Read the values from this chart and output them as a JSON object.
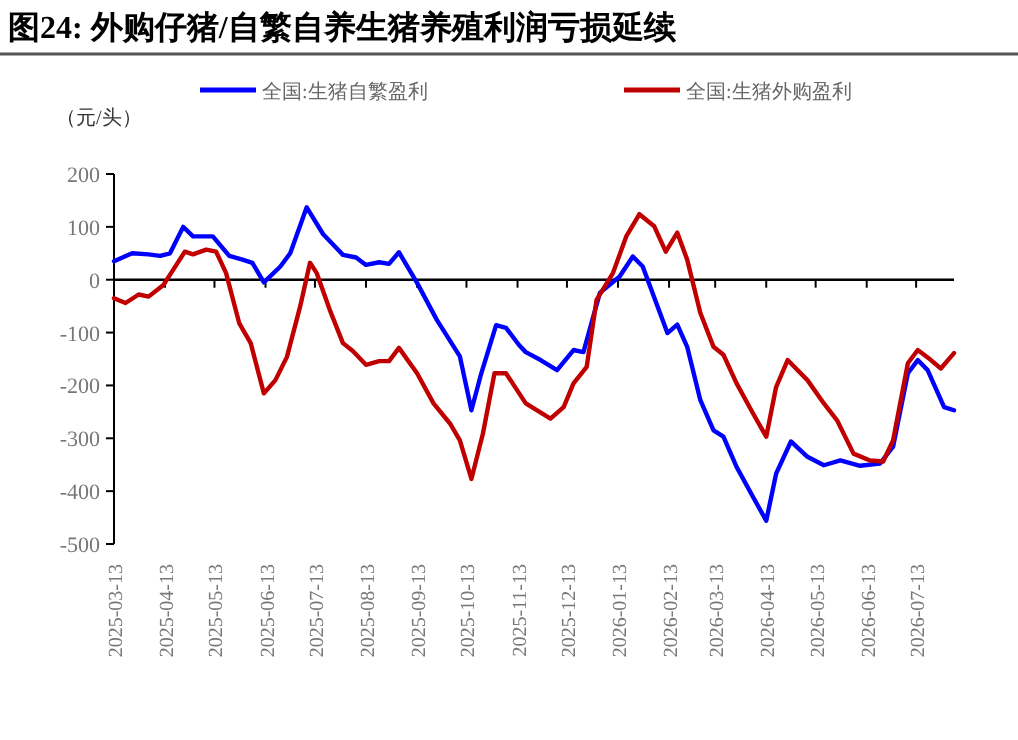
{
  "chart_data": {
    "type": "line",
    "title": "图24:  外购仔猪/自繁自养生猪养殖利润亏损延续",
    "ylabel": "（元/头）",
    "legend": "top",
    "marker": "none",
    "line_style": "solid",
    "xlim": [
      "2025-03-13",
      "2026-08-05"
    ],
    "xticks": [
      "2025-03-13",
      "2025-04-13",
      "2025-05-13",
      "2025-06-13",
      "2025-07-13",
      "2025-08-13",
      "2025-09-13",
      "2025-10-13",
      "2025-11-13",
      "2025-12-13",
      "2026-01-13",
      "2026-02-13",
      "2026-03-13",
      "2026-04-13",
      "2026-05-13",
      "2026-06-13",
      "2026-07-13"
    ],
    "ylim": [
      -500,
      200
    ],
    "yticks": [
      -500,
      -400,
      -300,
      -200,
      -100,
      0,
      100,
      200
    ],
    "series": [
      {
        "name": "全国:生猪自繁盈利",
        "color": "#0000ff",
        "x": [
          "2025-03-13",
          "2025-03-24",
          "2025-04-03",
          "2025-04-10",
          "2025-04-16",
          "2025-04-24",
          "2025-04-30",
          "2025-05-12",
          "2025-05-22",
          "2025-05-30",
          "2025-06-05",
          "2025-06-12",
          "2025-06-22",
          "2025-06-28",
          "2025-07-08",
          "2025-07-18",
          "2025-07-30",
          "2025-08-07",
          "2025-08-13",
          "2025-08-21",
          "2025-08-27",
          "2025-09-02",
          "2025-09-13",
          "2025-09-25",
          "2025-10-09",
          "2025-10-16",
          "2025-10-22",
          "2025-10-31",
          "2025-11-06",
          "2025-11-14",
          "2025-11-18",
          "2025-11-27",
          "2025-12-07",
          "2025-12-17",
          "2025-12-23",
          "2026-01-02",
          "2026-01-14",
          "2026-01-22",
          "2026-01-28",
          "2026-02-12",
          "2026-02-18",
          "2026-02-24",
          "2026-03-04",
          "2026-03-12",
          "2026-03-18",
          "2026-03-26",
          "2026-04-05",
          "2026-04-13",
          "2026-04-19",
          "2026-04-28",
          "2026-05-08",
          "2026-05-18",
          "2026-05-28",
          "2026-06-09",
          "2026-06-21",
          "2026-06-29",
          "2026-07-08",
          "2026-07-14",
          "2026-07-20",
          "2026-07-30",
          "2026-08-05"
        ],
        "values": [
          35,
          50,
          48,
          45,
          50,
          100,
          82,
          82,
          45,
          38,
          32,
          -5,
          25,
          50,
          137,
          86,
          47,
          42,
          28,
          33,
          30,
          52,
          -6,
          -76,
          -145,
          -247,
          -177,
          -86,
          -91,
          -124,
          -137,
          -152,
          -171,
          -133,
          -137,
          -25,
          6,
          44,
          25,
          -101,
          -85,
          -127,
          -228,
          -285,
          -297,
          -354,
          -411,
          -456,
          -367,
          -306,
          -335,
          -351,
          -342,
          -352,
          -348,
          -316,
          -177,
          -152,
          -171,
          -241,
          -247
        ]
      },
      {
        "name": "全国:生猪外购盈利",
        "color": "#c00000",
        "x": [
          "2025-03-13",
          "2025-03-20",
          "2025-03-28",
          "2025-04-03",
          "2025-04-12",
          "2025-04-18",
          "2025-04-25",
          "2025-04-30",
          "2025-05-08",
          "2025-05-14",
          "2025-05-20",
          "2025-05-28",
          "2025-06-04",
          "2025-06-12",
          "2025-06-19",
          "2025-06-26",
          "2025-07-04",
          "2025-07-10",
          "2025-07-14",
          "2025-07-22",
          "2025-07-30",
          "2025-08-05",
          "2025-08-13",
          "2025-08-21",
          "2025-08-27",
          "2025-09-02",
          "2025-09-13",
          "2025-09-23",
          "2025-10-03",
          "2025-10-09",
          "2025-10-16",
          "2025-10-23",
          "2025-10-30",
          "2025-11-06",
          "2025-11-14",
          "2025-11-18",
          "2025-12-03",
          "2025-12-11",
          "2025-12-17",
          "2025-12-25",
          "2025-12-31",
          "2026-01-10",
          "2026-01-18",
          "2026-01-26",
          "2026-02-04",
          "2026-02-11",
          "2026-02-18",
          "2026-02-24",
          "2026-03-04",
          "2026-03-12",
          "2026-03-18",
          "2026-03-26",
          "2026-04-05",
          "2026-04-13",
          "2026-04-19",
          "2026-04-26",
          "2026-05-08",
          "2026-05-18",
          "2026-05-26",
          "2026-06-05",
          "2026-06-15",
          "2026-06-23",
          "2026-06-29",
          "2026-07-08",
          "2026-07-14",
          "2026-07-22",
          "2026-07-28",
          "2026-08-05"
        ],
        "values": [
          -35,
          -44,
          -28,
          -32,
          -10,
          19,
          53,
          48,
          57,
          53,
          13,
          -82,
          -120,
          -215,
          -190,
          -146,
          -51,
          32,
          13,
          -57,
          -120,
          -135,
          -161,
          -154,
          -154,
          -129,
          -177,
          -234,
          -272,
          -304,
          -377,
          -291,
          -177,
          -177,
          -215,
          -234,
          -263,
          -241,
          -196,
          -165,
          -38,
          13,
          82,
          124,
          101,
          53,
          89,
          38,
          -63,
          -127,
          -142,
          -196,
          -253,
          -297,
          -203,
          -152,
          -190,
          -234,
          -266,
          -329,
          -342,
          -344,
          -304,
          -158,
          -133,
          -152,
          -168,
          -139
        ]
      }
    ]
  }
}
